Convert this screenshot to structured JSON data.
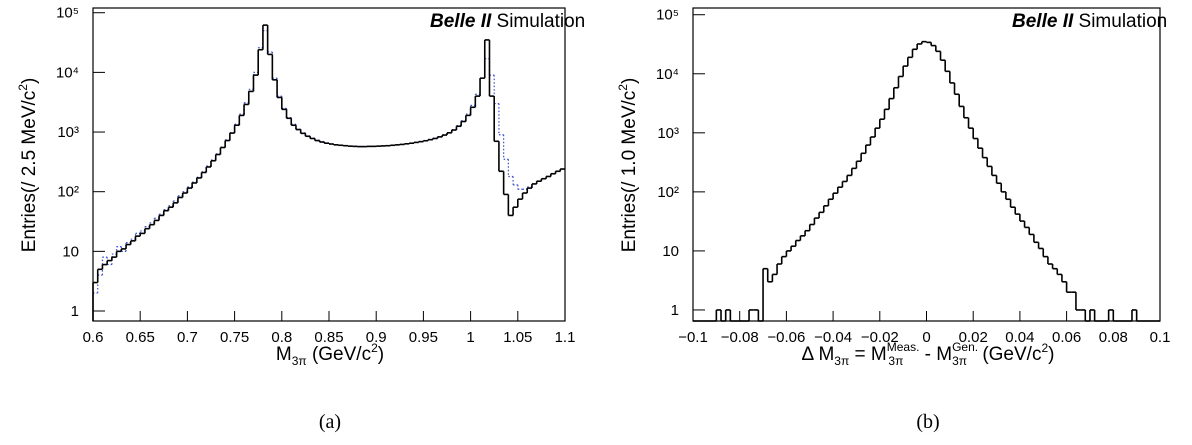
{
  "chart_data": [
    {
      "type": "histogram",
      "log_y": true,
      "caption": "(a)",
      "annotation": {
        "bold": "Belle II",
        "rest": " Simulation"
      },
      "x_label": [
        "M",
        "3π",
        " (GeV/c",
        "2",
        ")"
      ],
      "y_label": [
        "Entries(/ 2.5 MeV/c",
        "2",
        ")"
      ],
      "xlim": [
        0.6,
        1.1
      ],
      "ylim": [
        0.68,
        120000
      ],
      "xticks": [
        0.6,
        0.65,
        0.7,
        0.75,
        0.8,
        0.85,
        0.9,
        0.95,
        1,
        1.05,
        1.1
      ],
      "yticks": [
        1,
        10,
        {
          "value": 100,
          "label": "10²"
        },
        {
          "value": 1000,
          "label": "10³"
        },
        {
          "value": 10000,
          "label": "10⁴"
        },
        {
          "value": 100000,
          "label": "10⁵"
        }
      ],
      "bins": [
        0.6,
        0.605,
        0.61,
        0.615,
        0.62,
        0.625,
        0.63,
        0.635,
        0.64,
        0.645,
        0.65,
        0.655,
        0.66,
        0.665,
        0.67,
        0.675,
        0.68,
        0.685,
        0.69,
        0.695,
        0.7,
        0.705,
        0.71,
        0.715,
        0.72,
        0.725,
        0.73,
        0.735,
        0.74,
        0.745,
        0.75,
        0.755,
        0.76,
        0.765,
        0.77,
        0.775,
        0.78,
        0.785,
        0.79,
        0.795,
        0.8,
        0.805,
        0.81,
        0.815,
        0.82,
        0.825,
        0.83,
        0.835,
        0.84,
        0.845,
        0.85,
        0.855,
        0.86,
        0.865,
        0.87,
        0.875,
        0.88,
        0.885,
        0.89,
        0.895,
        0.9,
        0.905,
        0.91,
        0.915,
        0.92,
        0.925,
        0.93,
        0.935,
        0.94,
        0.945,
        0.95,
        0.955,
        0.96,
        0.965,
        0.97,
        0.975,
        0.98,
        0.985,
        0.99,
        0.995,
        1,
        1.005,
        1.01,
        1.015,
        1.02,
        1.025,
        1.03,
        1.035,
        1.04,
        1.045,
        1.05,
        1.055,
        1.06,
        1.065,
        1.07,
        1.075,
        1.08,
        1.085,
        1.09,
        1.095,
        1.1
      ],
      "series": [
        {
          "color": "#3b4fd0",
          "line_style": "dotted",
          "values": [
            2,
            4,
            8,
            6,
            9,
            12,
            10,
            14,
            16,
            20,
            22,
            26,
            30,
            36,
            42,
            50,
            58,
            70,
            85,
            100,
            120,
            145,
            175,
            215,
            270,
            340,
            430,
            560,
            740,
            980,
            1350,
            2000,
            3100,
            5200,
            10000,
            26000,
            50000,
            22000,
            8000,
            4000,
            2500,
            1750,
            1350,
            1120,
            970,
            860,
            790,
            730,
            690,
            655,
            630,
            612,
            600,
            590,
            582,
            576,
            572,
            570,
            572,
            576,
            580,
            586,
            592,
            600,
            610,
            622,
            636,
            652,
            672,
            695,
            720,
            750,
            790,
            840,
            900,
            980,
            1100,
            1280,
            1550,
            2000,
            2800,
            4300,
            8000,
            17000,
            9000,
            3000,
            900,
            350,
            180,
            130,
            110,
            110,
            120,
            135,
            150,
            165,
            180,
            200,
            220,
            240
          ]
        },
        {
          "color": "#000000",
          "line_style": "solid",
          "values": [
            3,
            5,
            6,
            7,
            8,
            10,
            11,
            13,
            15,
            18,
            20,
            24,
            28,
            33,
            40,
            48,
            55,
            65,
            80,
            95,
            115,
            140,
            170,
            210,
            260,
            330,
            420,
            550,
            720,
            960,
            1300,
            1900,
            2900,
            4800,
            9000,
            24000,
            62000,
            20000,
            7500,
            3800,
            2400,
            1700,
            1300,
            1100,
            950,
            850,
            780,
            720,
            680,
            650,
            630,
            610,
            600,
            590,
            580,
            575,
            570,
            570,
            575,
            575,
            580,
            585,
            590,
            600,
            610,
            620,
            635,
            650,
            670,
            690,
            715,
            745,
            780,
            830,
            890,
            970,
            1080,
            1250,
            1500,
            1900,
            2600,
            4000,
            8000,
            35000,
            4000,
            700,
            220,
            90,
            40,
            55,
            75,
            95,
            115,
            135,
            150,
            165,
            180,
            200,
            220,
            240
          ]
        }
      ]
    },
    {
      "type": "histogram",
      "log_y": true,
      "caption": "(b)",
      "annotation": {
        "bold": "Belle II",
        "rest": " Simulation"
      },
      "x_label": [
        "Δ M",
        "3π",
        " = M",
        "Meas.",
        "3π",
        " - M",
        "Gen.",
        "3π",
        " (GeV/c",
        "2",
        ")"
      ],
      "y_label": [
        "Entries(/ 1.0 MeV/c",
        "2",
        ")"
      ],
      "xlim": [
        -0.1,
        0.1
      ],
      "ylim": [
        0.65,
        130000
      ],
      "xticks": [
        {
          "value": -0.1,
          "label": "−0.1"
        },
        {
          "value": -0.08,
          "label": "−0.08"
        },
        {
          "value": -0.06,
          "label": "−0.06"
        },
        {
          "value": -0.04,
          "label": "−0.04"
        },
        {
          "value": -0.02,
          "label": "−0.02"
        },
        0,
        0.02,
        0.04,
        0.06,
        0.08,
        0.1
      ],
      "yticks": [
        1,
        10,
        {
          "value": 100,
          "label": "10²"
        },
        {
          "value": 1000,
          "label": "10³"
        },
        {
          "value": 10000,
          "label": "10⁴"
        },
        {
          "value": 100000,
          "label": "10⁵"
        }
      ],
      "bins": [
        -0.1,
        -0.098,
        -0.096,
        -0.094,
        -0.092,
        -0.09,
        -0.088,
        -0.086,
        -0.084,
        -0.082,
        -0.08,
        -0.078,
        -0.076,
        -0.074,
        -0.072,
        -0.07,
        -0.068,
        -0.066,
        -0.064,
        -0.062,
        -0.06,
        -0.058,
        -0.056,
        -0.054,
        -0.052,
        -0.05,
        -0.048,
        -0.046,
        -0.044,
        -0.042,
        -0.04,
        -0.038,
        -0.036,
        -0.034,
        -0.032,
        -0.03,
        -0.028,
        -0.026,
        -0.024,
        -0.022,
        -0.02,
        -0.018,
        -0.016,
        -0.014,
        -0.012,
        -0.01,
        -0.008,
        -0.006,
        -0.004,
        -0.002,
        0,
        0.002,
        0.004,
        0.006,
        0.008,
        0.01,
        0.012,
        0.014,
        0.016,
        0.018,
        0.02,
        0.022,
        0.024,
        0.026,
        0.028,
        0.03,
        0.032,
        0.034,
        0.036,
        0.038,
        0.04,
        0.042,
        0.044,
        0.046,
        0.048,
        0.05,
        0.052,
        0.054,
        0.056,
        0.058,
        0.06,
        0.062,
        0.064,
        0.066,
        0.068,
        0.07,
        0.072,
        0.074,
        0.076,
        0.078,
        0.08,
        0.082,
        0.084,
        0.086,
        0.088,
        0.09,
        0.092,
        0.094,
        0.096,
        0.098,
        0.1
      ],
      "series": [
        {
          "color": "#000000",
          "line_style": "solid",
          "values": [
            0,
            0,
            0,
            0,
            0,
            1,
            0,
            1,
            0,
            0,
            0,
            0,
            1,
            1,
            0,
            5,
            3,
            4,
            6,
            8,
            10,
            12,
            15,
            18,
            22,
            28,
            36,
            45,
            58,
            75,
            95,
            120,
            150,
            190,
            250,
            330,
            450,
            620,
            850,
            1200,
            1700,
            2500,
            3800,
            5800,
            9000,
            13500,
            19000,
            26000,
            32000,
            35000,
            34000,
            30000,
            24000,
            17000,
            11000,
            7000,
            4500,
            2800,
            1800,
            1200,
            800,
            550,
            380,
            270,
            190,
            140,
            100,
            75,
            55,
            42,
            32,
            25,
            19,
            14,
            11,
            8,
            6,
            5,
            4,
            3,
            2,
            2,
            1,
            1,
            0,
            1,
            0,
            0,
            0,
            1,
            0,
            0,
            0,
            0,
            1,
            0,
            0,
            0,
            0,
            0
          ]
        }
      ]
    }
  ]
}
